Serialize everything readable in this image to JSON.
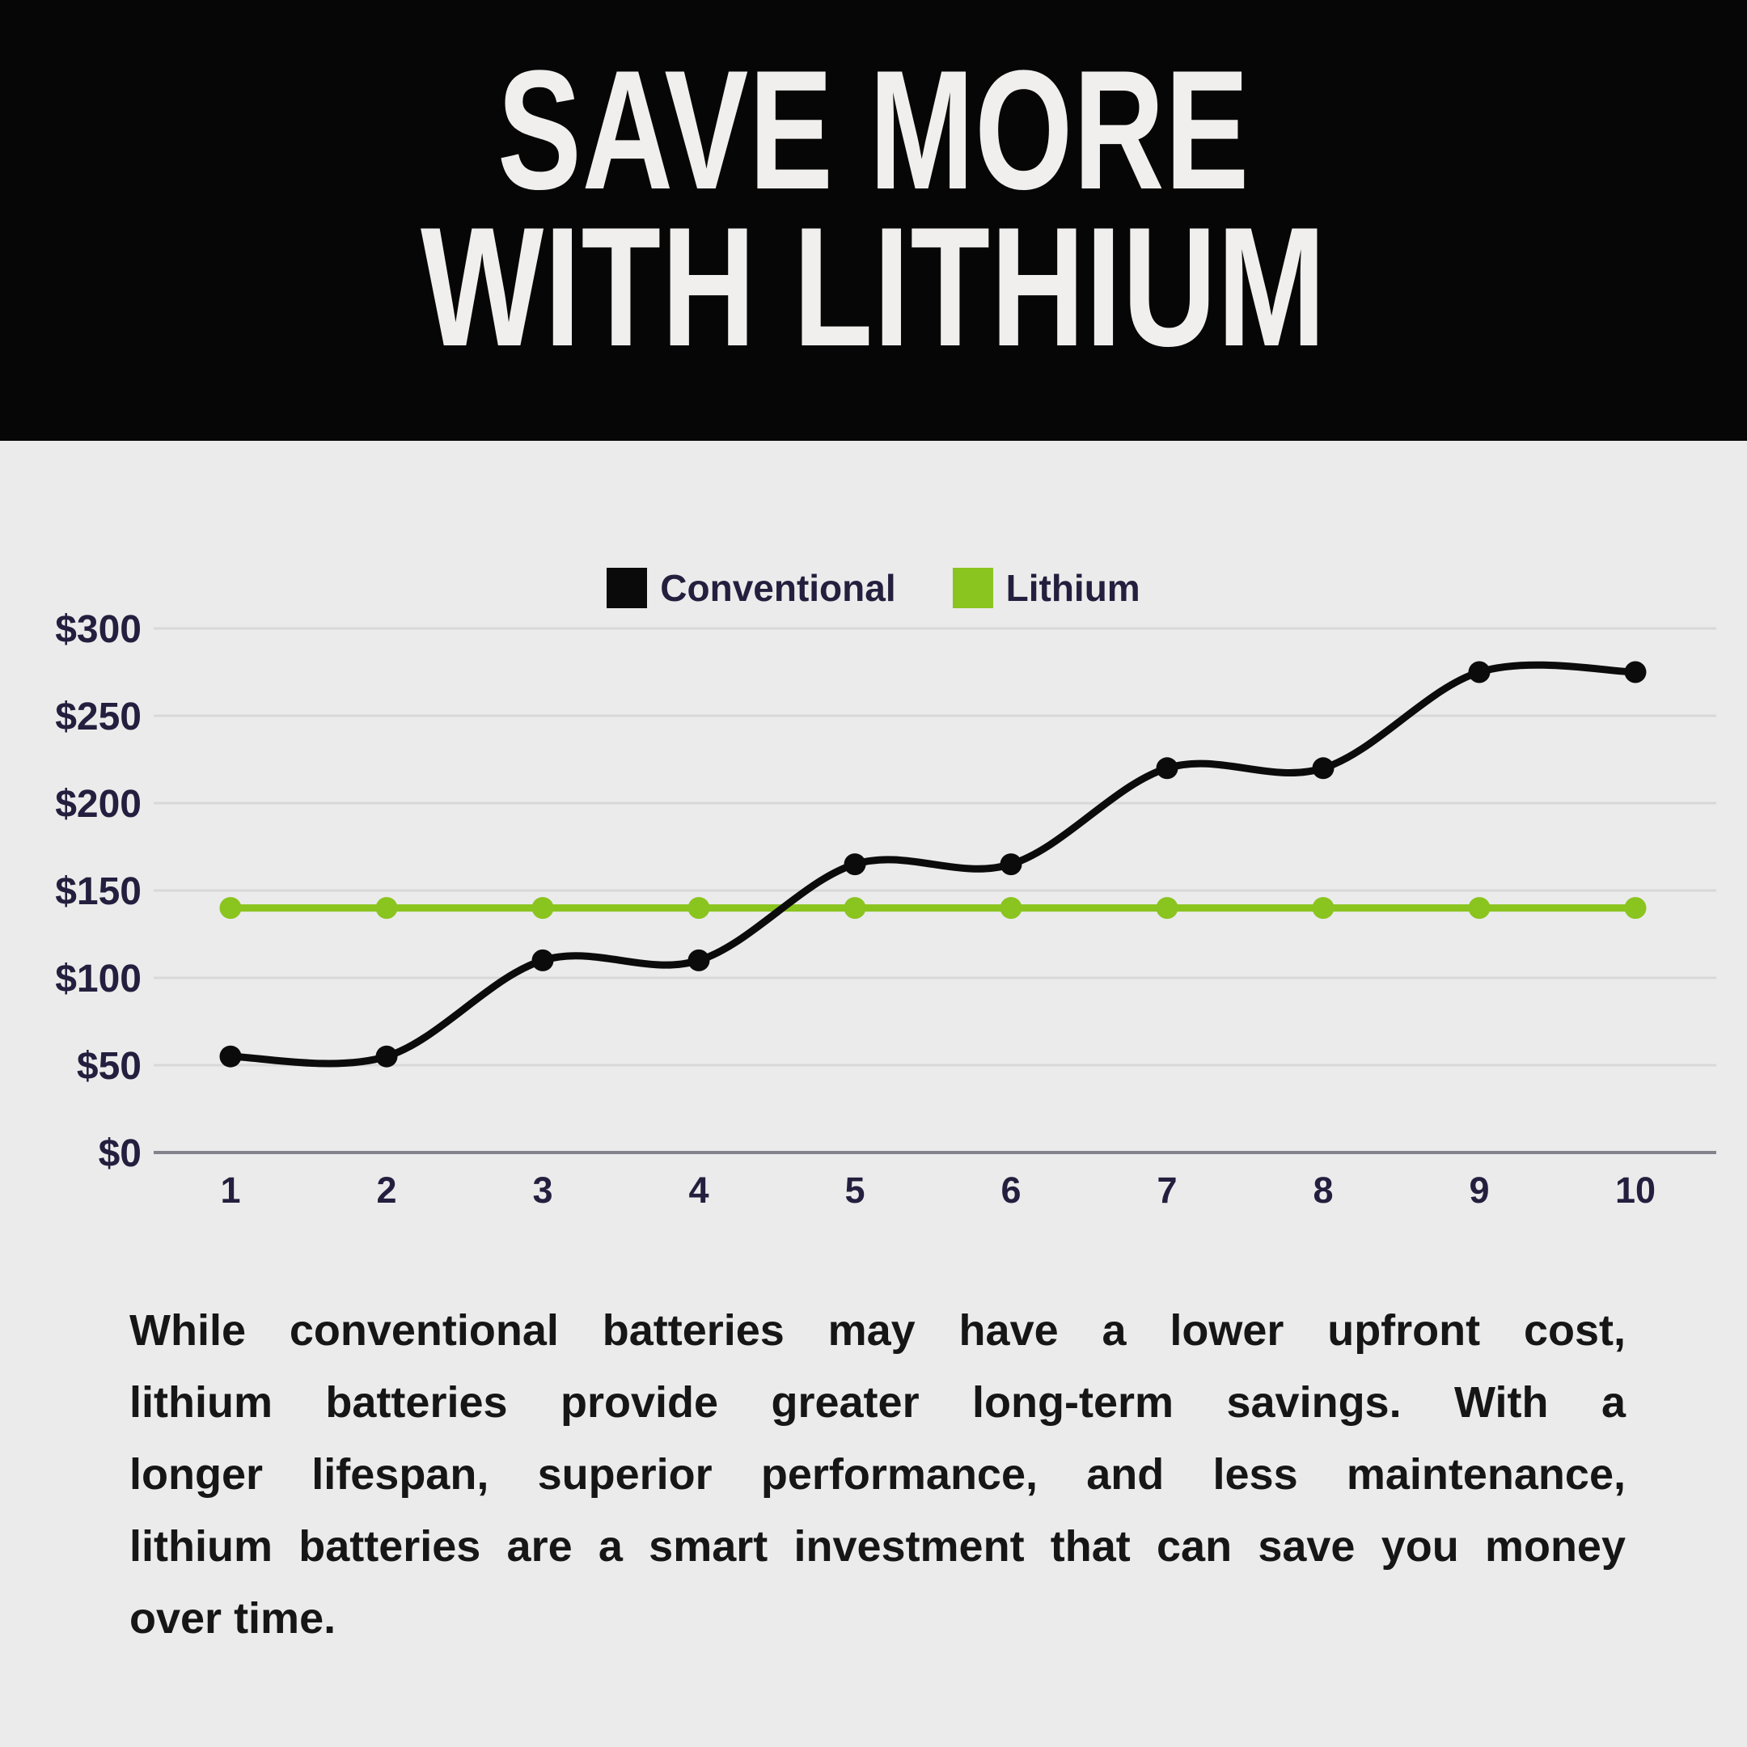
{
  "header": {
    "title_line1": "SAVE MORE",
    "title_line2": "WITH LITHIUM"
  },
  "legend": {
    "items": [
      {
        "label": "Conventional",
        "color": "#0a0a0a"
      },
      {
        "label": "Lithium",
        "color": "#8ac41f"
      }
    ]
  },
  "chart_data": {
    "type": "line",
    "x": [
      1,
      2,
      3,
      4,
      5,
      6,
      7,
      8,
      9,
      10
    ],
    "series": [
      {
        "name": "Conventional",
        "color": "#0b0b0b",
        "values": [
          55,
          55,
          110,
          110,
          165,
          165,
          220,
          220,
          275,
          275
        ]
      },
      {
        "name": "Lithium",
        "color": "#8ac41f",
        "values": [
          140,
          140,
          140,
          140,
          140,
          140,
          140,
          140,
          140,
          140
        ]
      }
    ],
    "yticks": [
      {
        "value": 0,
        "label": "$0"
      },
      {
        "value": 50,
        "label": "$50"
      },
      {
        "value": 100,
        "label": "$100"
      },
      {
        "value": 150,
        "label": "$150"
      },
      {
        "value": 200,
        "label": "$200"
      },
      {
        "value": 250,
        "label": "$250"
      },
      {
        "value": 300,
        "label": "$300"
      }
    ],
    "ylim": [
      0,
      300
    ],
    "xlabel": "",
    "ylabel": "",
    "grid": true,
    "legend_position": "top",
    "curve": "smooth"
  },
  "body": {
    "lines": [
      "While conventional batteries may have a lower upfront cost,",
      "lithium batteries provide greater long-term savings. With a",
      "longer lifespan, superior performance, and less maintenance,",
      "lithium batteries are a smart investment that can save you money",
      "over time."
    ]
  },
  "colors": {
    "background": "#ebebeb",
    "header_bg": "#060606",
    "title": "#f0efed",
    "axis_text": "#241f3e",
    "gridline": "#d8d8d8",
    "baseline": "#83828d",
    "body_text": "#161616"
  }
}
